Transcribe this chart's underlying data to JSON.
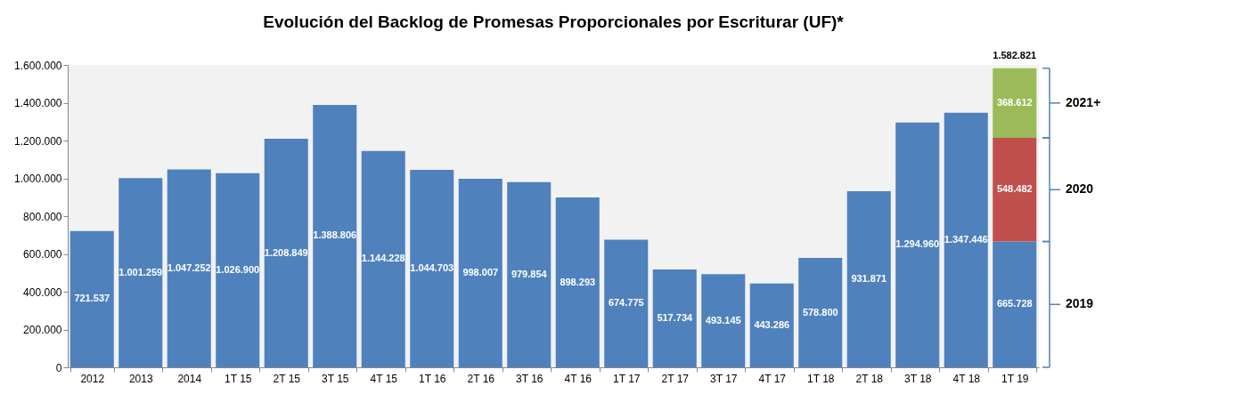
{
  "chart_data": {
    "type": "bar",
    "title": "Evolución del Backlog de Promesas Proporcionales por Escriturar (UF)*",
    "categories": [
      "2012",
      "2013",
      "2014",
      "1T 15",
      "2T 15",
      "3T 15",
      "4T 15",
      "1T 16",
      "2T 16",
      "3T 16",
      "4T 16",
      "1T 17",
      "2T 17",
      "3T 17",
      "4T 17",
      "1T 18",
      "2T 18",
      "3T 18",
      "4T 18",
      "1T 19"
    ],
    "stacked": true,
    "series": [
      {
        "color": "#4f81bd",
        "values": [
          721537,
          1001259,
          1047252,
          1026900,
          1208849,
          1388806,
          1144228,
          1044703,
          998007,
          979854,
          898293,
          674775,
          517734,
          493145,
          443286,
          578800,
          931871,
          1294960,
          1347446,
          665728
        ],
        "value_labels": [
          "721.537",
          "1.001.259",
          "1.047.252",
          "1.026.900",
          "1.208.849",
          "1.388.806",
          "1.144.228",
          "1.044.703",
          "998.007",
          "979.854",
          "898.293",
          "674.775",
          "517.734",
          "493.145",
          "443.286",
          "578.800",
          "931.871",
          "1.294.960",
          "1.347.446",
          "665.728"
        ]
      },
      {
        "color": "#c0504d",
        "values": [
          null,
          null,
          null,
          null,
          null,
          null,
          null,
          null,
          null,
          null,
          null,
          null,
          null,
          null,
          null,
          null,
          null,
          null,
          null,
          548482
        ],
        "value_labels": [
          null,
          null,
          null,
          null,
          null,
          null,
          null,
          null,
          null,
          null,
          null,
          null,
          null,
          null,
          null,
          null,
          null,
          null,
          null,
          "548.482"
        ]
      },
      {
        "color": "#9bbb59",
        "values": [
          null,
          null,
          null,
          null,
          null,
          null,
          null,
          null,
          null,
          null,
          null,
          null,
          null,
          null,
          null,
          null,
          null,
          null,
          null,
          368612
        ],
        "value_labels": [
          null,
          null,
          null,
          null,
          null,
          null,
          null,
          null,
          null,
          null,
          null,
          null,
          null,
          null,
          null,
          null,
          null,
          null,
          null,
          "368.612"
        ]
      }
    ],
    "totals": [
      null,
      null,
      null,
      null,
      null,
      null,
      null,
      null,
      null,
      null,
      null,
      null,
      null,
      null,
      null,
      null,
      null,
      null,
      null,
      "1.582.821"
    ],
    "annotations": [
      "2019",
      "2020",
      "2021+"
    ],
    "ylim": [
      0,
      1600000
    ],
    "yticks": [
      0,
      {
        "value": 200000,
        "label": "200.000"
      },
      {
        "value": 400000,
        "label": "400.000"
      },
      {
        "value": 600000,
        "label": "600.000"
      },
      {
        "value": 800000,
        "label": "800.000"
      },
      {
        "value": 1000000,
        "label": "1.000.000"
      },
      {
        "value": 1200000,
        "label": "1.200.000"
      },
      {
        "value": 1400000,
        "label": "1.400.000"
      },
      {
        "value": 1600000,
        "label": "1.600.000"
      }
    ],
    "grid": false
  }
}
